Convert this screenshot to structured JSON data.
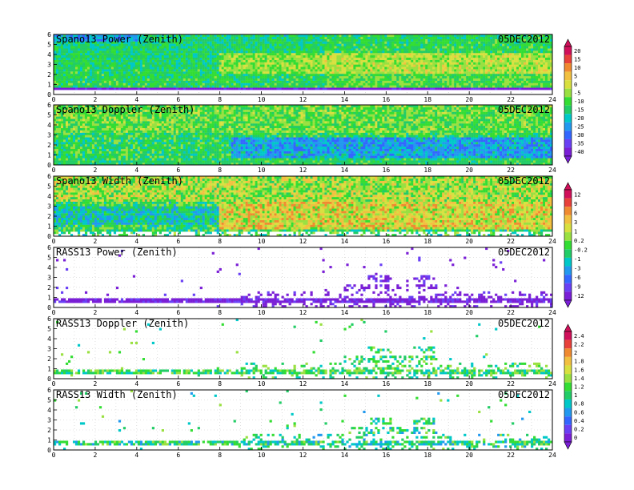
{
  "chart_data": {
    "type": "heatmap",
    "date": "05DEC2012",
    "x_ticks": [
      0,
      2,
      4,
      6,
      8,
      10,
      12,
      14,
      16,
      18,
      20,
      22,
      24
    ],
    "y_ticks": [
      0,
      1,
      2,
      3,
      4,
      5,
      6
    ],
    "xlim": [
      0,
      24
    ],
    "ylim": [
      0,
      6
    ],
    "panels": [
      {
        "title": "Spano13 Power (Zenith)",
        "kind": "power",
        "colorbar": 0
      },
      {
        "title": "Spano13 Doppler (Zenith)",
        "kind": "doppler",
        "colorbar": 0
      },
      {
        "title": "Spano13 Width (Zenith)",
        "kind": "width",
        "colorbar": 1
      },
      {
        "title": "RASS13 Power (Zenith)",
        "kind": "rass_power",
        "colorbar": 1
      },
      {
        "title": "RASS13 Doppler (Zenith)",
        "kind": "rass_doppler",
        "colorbar": 2
      },
      {
        "title": "RASS13 Width (Zenith)",
        "kind": "rass_width",
        "colorbar": 2
      }
    ],
    "colorbars": [
      {
        "labels": [
          "20",
          "15",
          "10",
          "5",
          "0",
          "-5",
          "-10",
          "-15",
          "-20",
          "-25",
          "-30",
          "-35",
          "-40"
        ]
      },
      {
        "labels": [
          "12",
          "9",
          "6",
          "3",
          "1",
          "0.2",
          "-0.2",
          "-1",
          "-3",
          "-6",
          "-9",
          "-12"
        ]
      },
      {
        "labels": [
          "2.4",
          "2.2",
          "2",
          "1.8",
          "1.6",
          "1.4",
          "1.2",
          "1",
          "0.8",
          "0.6",
          "0.4",
          "0.2",
          "0"
        ]
      }
    ],
    "palette": [
      "#7a1fd6",
      "#6a40f5",
      "#3366ff",
      "#2299ee",
      "#00c8c8",
      "#22cc66",
      "#33dd33",
      "#99e040",
      "#d8e040",
      "#f2c040",
      "#f08a30",
      "#e8403a",
      "#d0105a"
    ]
  }
}
